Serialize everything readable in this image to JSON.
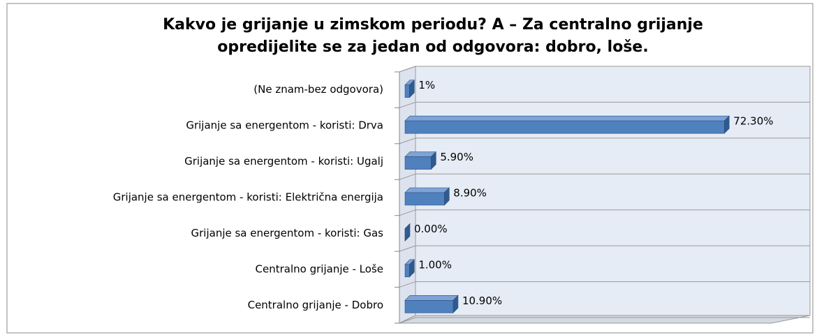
{
  "chart_data": {
    "type": "bar",
    "orientation": "horizontal",
    "title": [
      "Kakvo je grijanje  u zimskom periodu? A – Za centralno grijanje",
      "opredijelite se za jedan od odgovora: dobro, loše."
    ],
    "categories": [
      "(Ne znam-bez odgovora)",
      "Grijanje sa energentom - koristi: Drva",
      "Grijanje sa energentom - koristi: Ugalj",
      "Grijanje sa energentom - koristi: Električna energija",
      "Grijanje sa energentom - koristi: Gas",
      "Centralno grijanje - Loše",
      "Centralno grijanje - Dobro"
    ],
    "values": [
      1,
      72.3,
      5.9,
      8.9,
      0,
      1,
      10.9
    ],
    "value_labels": [
      "1%",
      "72.30%",
      "5.90%",
      "8.90%",
      "0.00%",
      "1.00%",
      "10.90%"
    ],
    "color": "#4f81bd",
    "xlim": [
      0,
      80
    ]
  }
}
